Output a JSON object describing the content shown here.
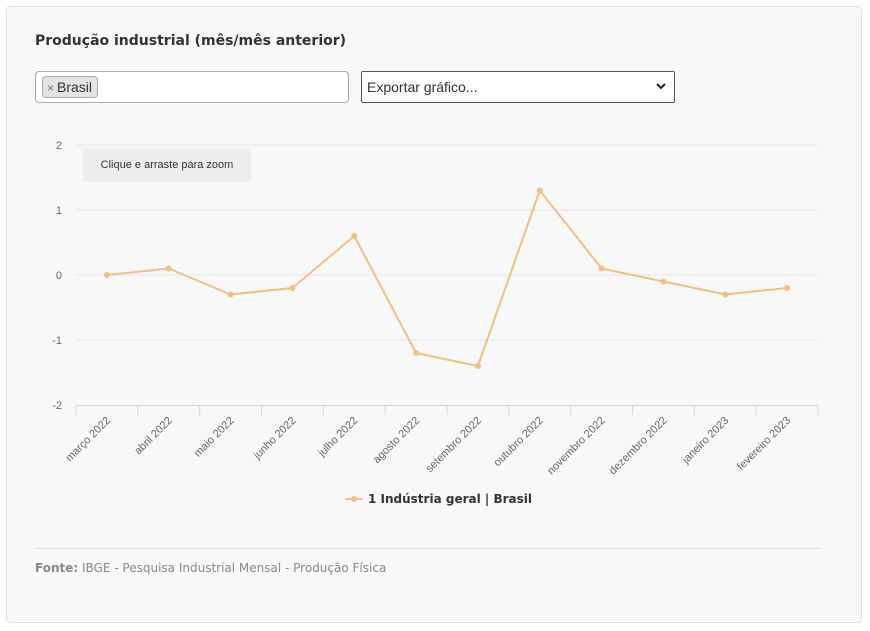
{
  "header": {
    "title": "Produção industrial (mês/mês anterior)"
  },
  "filter": {
    "selected_tag": "Brasil",
    "remove_symbol": "×"
  },
  "export": {
    "label": "Exportar gráfico..."
  },
  "zoom_hint": "Clique e arraste para zoom",
  "legend": {
    "label": "1 Indústria geral | Brasil"
  },
  "source": {
    "label": "Fonte:",
    "text": "IBGE - Pesquisa Industrial Mensal - Produção Física"
  },
  "colors": {
    "series": "#f0c080",
    "grid": "#e6e6e6",
    "axis": "#ccd6eb"
  },
  "chart_data": {
    "type": "line",
    "categories": [
      "março 2022",
      "abril 2022",
      "maio 2022",
      "junho 2022",
      "julho 2022",
      "agosto 2022",
      "setembro 2022",
      "outubro 2022",
      "novembro 2022",
      "dezembro 2022",
      "janeiro 2023",
      "fevereiro 2023"
    ],
    "series": [
      {
        "name": "1 Indústria geral | Brasil",
        "values": [
          0.0,
          0.1,
          -0.3,
          -0.2,
          0.6,
          -1.2,
          -1.4,
          1.3,
          0.1,
          -0.1,
          -0.3,
          -0.2
        ]
      }
    ],
    "ylim": [
      -2,
      2
    ],
    "yticks": [
      "2",
      "1",
      "0",
      "-1",
      "-2"
    ],
    "grid": true,
    "legend_position": "bottom-center"
  }
}
